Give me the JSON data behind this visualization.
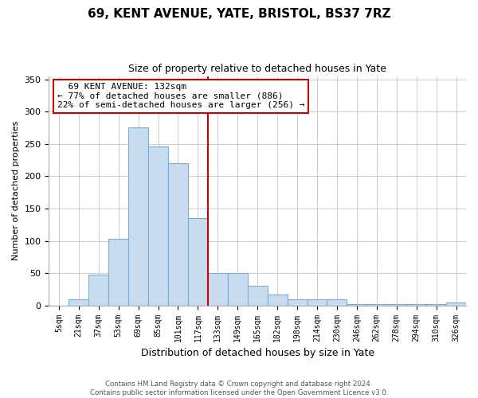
{
  "title": "69, KENT AVENUE, YATE, BRISTOL, BS37 7RZ",
  "subtitle": "Size of property relative to detached houses in Yate",
  "xlabel": "Distribution of detached houses by size in Yate",
  "ylabel": "Number of detached properties",
  "bar_labels": [
    "5sqm",
    "21sqm",
    "37sqm",
    "53sqm",
    "69sqm",
    "85sqm",
    "101sqm",
    "117sqm",
    "133sqm",
    "149sqm",
    "165sqm",
    "182sqm",
    "198sqm",
    "214sqm",
    "230sqm",
    "246sqm",
    "262sqm",
    "278sqm",
    "294sqm",
    "310sqm",
    "326sqm"
  ],
  "bar_values": [
    0,
    10,
    48,
    103,
    275,
    246,
    220,
    135,
    50,
    50,
    30,
    17,
    10,
    10,
    10,
    2,
    2,
    2,
    2,
    2,
    5
  ],
  "bar_color": "#c8dcf0",
  "bar_edge_color": "#7aadd4",
  "marker_color": "#cc0000",
  "annotation_line1": "69 KENT AVENUE: 132sqm",
  "annotation_line2": "← 77% of detached houses are smaller (886)",
  "annotation_line3": "22% of semi-detached houses are larger (256) →",
  "annotation_box_color": "#ffffff",
  "annotation_box_edge": "#cc0000",
  "ylim": [
    0,
    355
  ],
  "yticks": [
    0,
    50,
    100,
    150,
    200,
    250,
    300,
    350
  ],
  "footer_line1": "Contains HM Land Registry data © Crown copyright and database right 2024.",
  "footer_line2": "Contains public sector information licensed under the Open Government Licence v3.0.",
  "background_color": "#ffffff",
  "grid_color": "#cccccc"
}
